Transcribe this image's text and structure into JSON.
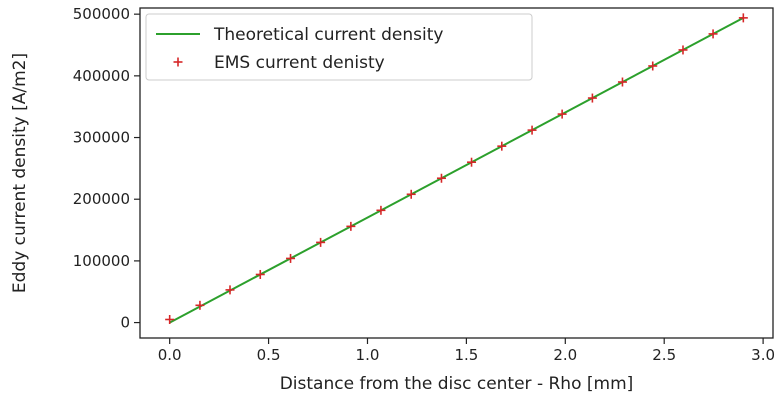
{
  "chart_data": {
    "type": "line",
    "xlabel": "Distance from the disc center - Rho [mm]",
    "ylabel": "Eddy current density [A/m2]",
    "xlim": [
      -0.15,
      3.05
    ],
    "ylim": [
      -25000,
      510000
    ],
    "xticks": [
      0.0,
      0.5,
      1.0,
      1.5,
      2.0,
      2.5,
      3.0
    ],
    "xtick_labels": [
      "0.0",
      "0.5",
      "1.0",
      "1.5",
      "2.0",
      "2.5",
      "3.0"
    ],
    "yticks": [
      0,
      100000,
      200000,
      300000,
      400000,
      500000
    ],
    "ytick_labels": [
      "0",
      "100000",
      "200000",
      "300000",
      "400000",
      "500000"
    ],
    "grid": false,
    "legend_position": "top-left",
    "series": [
      {
        "name": "Theoretical current density",
        "kind": "line",
        "color": "#2ca02c",
        "x": [
          0.0,
          2.9
        ],
        "y": [
          0,
          494000
        ]
      },
      {
        "name": "EMS current denisty",
        "kind": "marker",
        "marker": "+",
        "color": "#d62728",
        "x": [
          0.0,
          0.153,
          0.305,
          0.458,
          0.611,
          0.763,
          0.916,
          1.068,
          1.221,
          1.374,
          1.526,
          1.679,
          1.832,
          1.984,
          2.137,
          2.289,
          2.442,
          2.595,
          2.747,
          2.9
        ],
        "y": [
          5000,
          28000,
          53000,
          78000,
          104000,
          130000,
          156000,
          182000,
          208000,
          234000,
          260000,
          286000,
          312000,
          338000,
          364000,
          390000,
          416000,
          442000,
          468000,
          494000
        ]
      }
    ]
  }
}
